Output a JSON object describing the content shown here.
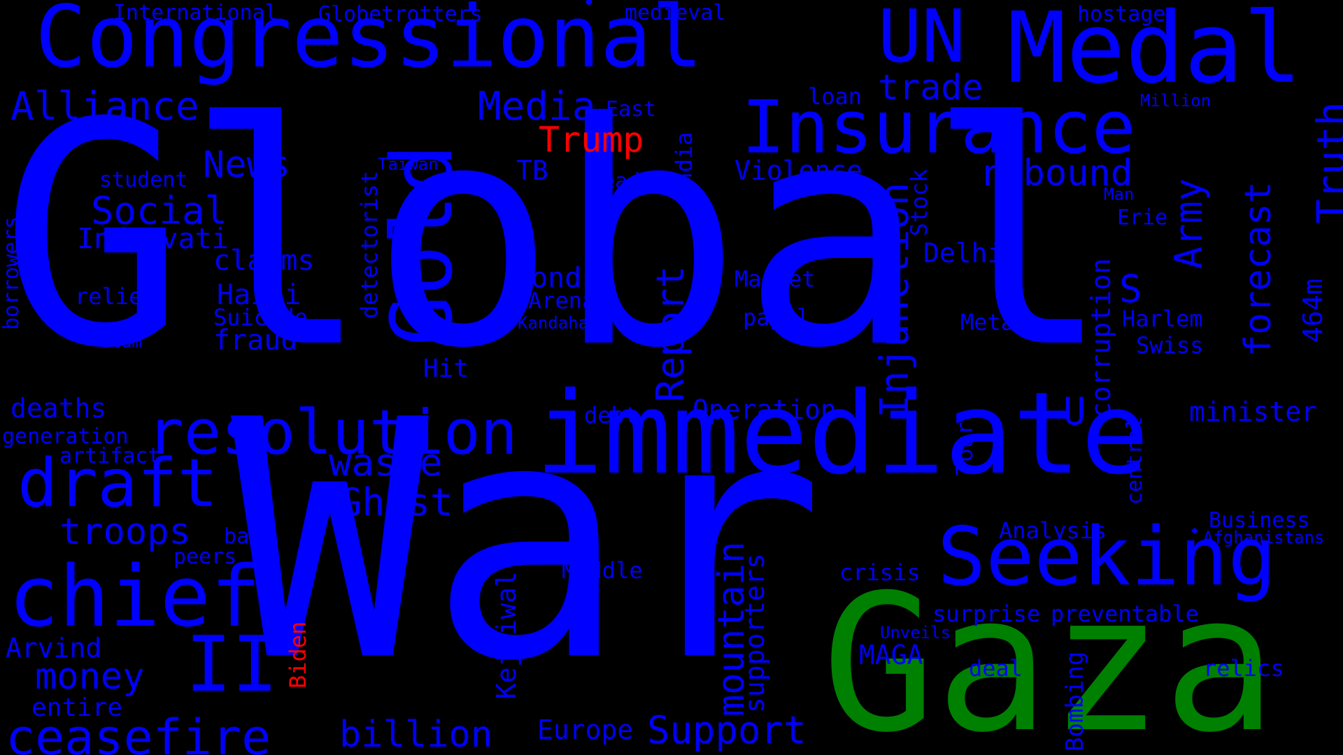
{
  "colors": {
    "background": "#000000",
    "primary": "#0000ff",
    "accent_green": "#008000",
    "accent_red": "#ff0000"
  },
  "words": {
    "global": "Global",
    "war": "War",
    "congressional": "Congressional",
    "medal": "Medal",
    "un": "UN",
    "insurance": "Insurance",
    "immediate": "immediate",
    "gaza": "Gaza",
    "seeking": "Seeking",
    "gold": "Gold",
    "resolution": "resolution",
    "draft": "draft",
    "chief": "chief",
    "ii": "II",
    "ceasefire": "ceasefire",
    "alliance": "Alliance",
    "media": "Media",
    "trump": "Trump",
    "trade": "trade",
    "news": "News",
    "social": "Social",
    "international": "International",
    "globetrotters": "Globetrotters",
    "medieval": "medieval",
    "hostage": "hostage",
    "million": "Million",
    "loan": "loan",
    "east": "East",
    "rebound": "rebound",
    "truth": "Truth",
    "violence": "Violence",
    "student": "student",
    "taiwan": "Taiwan",
    "tb": "TB",
    "heads": "Heads",
    "india": "India",
    "indravati": "Indravati",
    "claims": "claims",
    "relief": "relief",
    "haiti": "Haiti",
    "suicide": "Suicide",
    "fraud": "fraud",
    "scam": "Scam",
    "bond": "bond",
    "arena": "Arena",
    "kandahar": "Kandahar",
    "report": "Report",
    "market": "Market",
    "papal": "papal",
    "injunction": "Injunction",
    "stock": "Stock",
    "delhis": "Delhis",
    "metal": "Metal",
    "s": "S",
    "army": "Army",
    "man": "Man",
    "erie": "Erie",
    "forecast": "forecast",
    "464m": "464m",
    "harlem": "Harlem",
    "swiss": "Swiss",
    "corruption": "corruption",
    "hit": "Hit",
    "deaths": "deaths",
    "generation": "generation",
    "artifact": "artifact",
    "debt": "debt",
    "operation": "Operation",
    "u": "U",
    "minister": "minister",
    "waste": "waste",
    "ghost": "Ghost",
    "troops": "troops",
    "bank": "bank",
    "peers": "peers",
    "tour": "Tour",
    "central": "central",
    "business": "Business",
    "afghanistans": "Afghanistans",
    "analysis": "Analysis",
    "middle": "Middle",
    "crisis": "crisis",
    "mountain": "mountain",
    "supporters": "supporters",
    "surprise": "surprise",
    "preventable": "preventable",
    "unveils": "Unveils",
    "maga": "MAGA",
    "deal": "deal",
    "relics": "relics",
    "arvind": "Arvind",
    "money": "money",
    "biden": "Biden",
    "kejriwal": "Kejriwal",
    "entire": "entire",
    "billion": "billion",
    "europe": "Europe",
    "support": "Support",
    "bombing": "Bombing",
    "borrowers": "borrowers",
    "detectorist": "detectorist"
  }
}
